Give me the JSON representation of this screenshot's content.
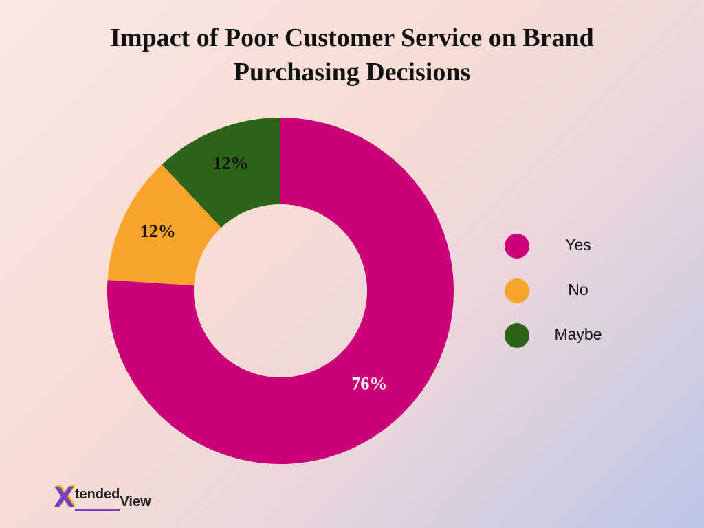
{
  "chart_data": {
    "type": "doughnut",
    "title": "Impact of Poor Customer Service on Brand Purchasing Decisions",
    "categories": [
      "Yes",
      "No",
      "Maybe"
    ],
    "values": [
      76,
      12,
      12
    ],
    "value_labels": [
      "76%",
      "12%",
      "12%"
    ],
    "colors": [
      "#cc0077",
      "#f8a42a",
      "#2e6419"
    ],
    "legend": "right"
  },
  "logo": {
    "mark": "X",
    "text": "tended",
    "suffix": "View"
  }
}
